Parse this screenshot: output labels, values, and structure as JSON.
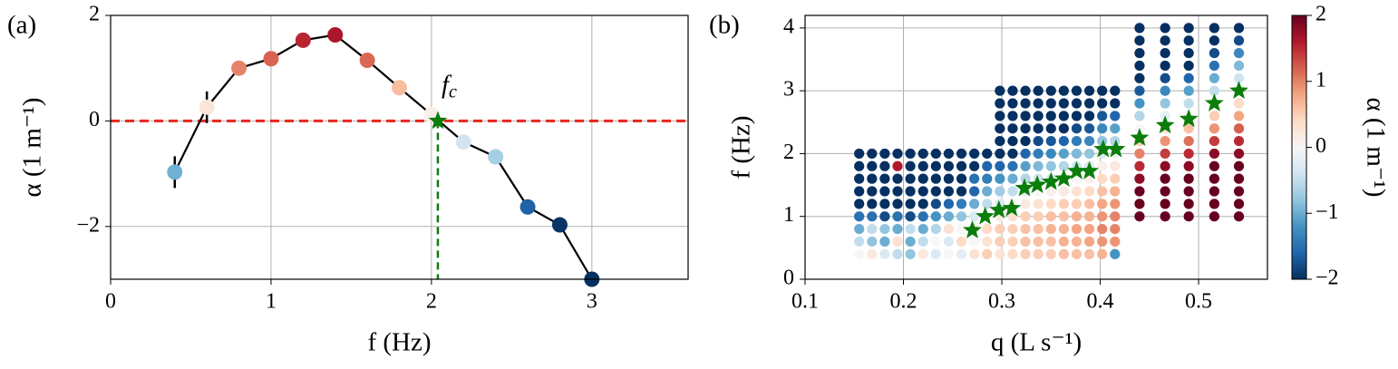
{
  "chart_data": [
    {
      "type": "line",
      "panel_label": "(a)",
      "xlabel": "f (Hz)",
      "ylabel": "α (1 m⁻¹)",
      "x": [
        0.4,
        0.6,
        0.8,
        1.0,
        1.2,
        1.4,
        1.6,
        1.8,
        2.0,
        2.2,
        2.4,
        2.6,
        2.8,
        3.0
      ],
      "values": [
        -0.97,
        0.26,
        1.0,
        1.18,
        1.53,
        1.63,
        1.15,
        0.63,
        0.12,
        -0.4,
        -0.68,
        -1.63,
        -1.97,
        -3.0
      ],
      "errors": [
        0.3,
        0.3,
        null,
        null,
        null,
        null,
        null,
        null,
        null,
        null,
        null,
        null,
        null,
        null
      ],
      "line_color": "#000000",
      "colormap": [
        "#053061",
        "#2166ac",
        "#4393c3",
        "#92c5de",
        "#d1e5f0",
        "#f7f7f7",
        "#fddbc7",
        "#f4a582",
        "#d6604d",
        "#b2182b",
        "#67001f"
      ],
      "clim": [
        -2,
        2
      ],
      "xlim": [
        0,
        3.6
      ],
      "ylim": [
        -3,
        2
      ],
      "xticks": [
        0,
        1,
        2,
        3
      ],
      "yticks": [
        {
          "value": -2,
          "label": "−2"
        },
        0,
        2
      ],
      "grid": true,
      "reference_line": {
        "value": 0,
        "color": "#e8251f"
      },
      "critical_point": {
        "label_main": "f",
        "label_sub": "c",
        "x": 2.04,
        "y": 0,
        "color": "#0a7d0a"
      }
    },
    {
      "type": "scatter",
      "panel_label": "(b)",
      "xlabel": "q (L s⁻¹)",
      "ylabel": "f (Hz)",
      "colorbar_label": "α (1 m⁻¹)",
      "regions": [
        {
          "f": [
            0.4,
            0.6,
            0.8,
            1.0,
            1.2,
            1.4,
            1.6,
            1.8,
            2.0
          ],
          "columns": [
            {
              "q": 0.155,
              "alpha": [
                0,
                -0.5,
                -1,
                -1.5,
                -2,
                -2,
                -2,
                -2,
                -2
              ]
            },
            {
              "q": 0.168,
              "alpha": [
                0.2,
                -0.8,
                -0.5,
                -1.5,
                -2,
                -2,
                -2,
                -2,
                -2
              ]
            },
            {
              "q": 0.181,
              "alpha": [
                -0.3,
                -1,
                -0.8,
                -1.8,
                -2,
                -2,
                -2,
                -2,
                -2
              ]
            },
            {
              "q": 0.194,
              "alpha": [
                -0.5,
                0.3,
                -1,
                -1.5,
                -2,
                -2,
                -2,
                1.6,
                -2
              ]
            },
            {
              "q": 0.207,
              "alpha": [
                -0.8,
                -1,
                -0.5,
                -1.8,
                -2,
                -2,
                -2,
                -2,
                -2
              ]
            },
            {
              "q": 0.22,
              "alpha": [
                0.2,
                -0.5,
                -1,
                -1.5,
                -2,
                -2,
                -2,
                -2,
                -2
              ]
            },
            {
              "q": 0.233,
              "alpha": [
                -0.3,
                0,
                -0.6,
                -1.2,
                -1.8,
                -2,
                -2,
                -2,
                -2
              ]
            },
            {
              "q": 0.246,
              "alpha": [
                0,
                -0.3,
                0.3,
                -1,
                -1.6,
                -2,
                -2,
                -2,
                -2
              ]
            },
            {
              "q": 0.259,
              "alpha": [
                -0.2,
                0.4,
                0,
                -0.8,
                -1.4,
                -2,
                -2,
                -2,
                -2
              ]
            },
            {
              "q": 0.272,
              "alpha": [
                0.3,
                0,
                0.2,
                -0.3,
                -1,
                -1.6,
                -1.5,
                -2,
                -2
              ]
            },
            {
              "q": 0.285,
              "alpha": [
                0.5,
                0.3,
                0.4,
                0,
                -0.5,
                -1,
                -1.4,
                -1.6,
                -2
              ]
            }
          ]
        },
        {
          "f": [
            0.4,
            0.6,
            0.8,
            1.0,
            1.2,
            1.4,
            1.6,
            1.8,
            2.0,
            2.2,
            2.4,
            2.6,
            2.8,
            3.0
          ],
          "columns": [
            {
              "q": 0.298,
              "alpha": [
                0.3,
                0.5,
                0.5,
                0.2,
                -0.3,
                -0.7,
                -1.2,
                -1.6,
                -2,
                -2,
                -2,
                -2,
                -2,
                -2
              ]
            },
            {
              "q": 0.311,
              "alpha": [
                0.4,
                0.5,
                0.5,
                0.3,
                0,
                -0.5,
                -1,
                -1.5,
                -2,
                -2,
                -2,
                -2,
                -2,
                -2
              ]
            },
            {
              "q": 0.324,
              "alpha": [
                0.5,
                0.6,
                0.6,
                0.5,
                0.2,
                -0.2,
                -0.6,
                -1.1,
                -1.6,
                -2,
                -2,
                -2,
                -2,
                -2
              ]
            },
            {
              "q": 0.337,
              "alpha": [
                0.5,
                0.6,
                0.6,
                0.5,
                0.3,
                0,
                -0.4,
                -0.9,
                -1.4,
                -1.8,
                -2,
                -2,
                -2,
                -2
              ]
            },
            {
              "q": 0.35,
              "alpha": [
                0.5,
                0.6,
                0.7,
                0.6,
                0.4,
                0.1,
                -0.3,
                -0.8,
                -1.3,
                -1.7,
                -2,
                -2,
                -2,
                -2
              ]
            },
            {
              "q": 0.363,
              "alpha": [
                0.6,
                0.7,
                0.7,
                0.6,
                0.5,
                0.2,
                -0.2,
                -0.6,
                -1.1,
                -1.6,
                -2,
                -2,
                -2,
                -2
              ]
            },
            {
              "q": 0.376,
              "alpha": [
                0.6,
                0.7,
                0.8,
                0.7,
                0.5,
                0.3,
                0,
                -0.4,
                -0.9,
                -1.4,
                -1.8,
                -2,
                -2,
                -2
              ]
            },
            {
              "q": 0.389,
              "alpha": [
                0.6,
                0.8,
                0.8,
                0.7,
                0.6,
                0.4,
                0.1,
                -0.3,
                -0.8,
                -1.3,
                -1.7,
                -2,
                -2,
                -2
              ]
            },
            {
              "q": 0.402,
              "alpha": [
                0.7,
                0.9,
                1,
                0.9,
                0.8,
                0.6,
                0.4,
                0.1,
                -0.3,
                -0.8,
                -1.3,
                -1.7,
                -2,
                -2
              ]
            },
            {
              "q": 0.415,
              "alpha": [
                -1.2,
                0.9,
                1,
                1,
                0.9,
                0.7,
                0.5,
                0.2,
                -0.1,
                -0.6,
                -1.1,
                -1.6,
                -2,
                -2
              ]
            }
          ]
        },
        {
          "f": [
            1.0,
            1.2,
            1.4,
            1.6,
            1.8,
            2.0,
            2.2,
            2.4,
            2.6,
            2.8,
            3.0,
            3.2,
            3.4,
            3.6,
            3.8,
            4.0
          ],
          "columns": [
            {
              "q": 0.44,
              "alpha": [
                2,
                2,
                2,
                1.8,
                1.5,
                1,
                0.5,
                0,
                -0.6,
                -1.2,
                -1.7,
                -2,
                -2,
                -2,
                -2,
                -2
              ]
            },
            {
              "q": 0.466,
              "alpha": [
                2,
                2,
                2,
                2,
                1.8,
                1.4,
                0.9,
                0.3,
                -0.2,
                -0.8,
                -1.3,
                -1.8,
                -2,
                -2,
                -2,
                -2
              ]
            },
            {
              "q": 0.49,
              "alpha": [
                2,
                2,
                2,
                2,
                1.8,
                1.5,
                1.1,
                0.6,
                0,
                -0.5,
                -1.1,
                -1.6,
                -2,
                -2,
                -2,
                -2
              ]
            },
            {
              "q": 0.516,
              "alpha": [
                2,
                2,
                2,
                2,
                2,
                1.8,
                1.4,
                0.9,
                0.5,
                0,
                -0.5,
                -1,
                -1.5,
                -1.8,
                -2,
                -2
              ]
            },
            {
              "q": 0.541,
              "alpha": [
                2,
                2,
                2,
                2,
                2,
                1.8,
                1.5,
                1.2,
                0.8,
                0.4,
                0,
                -0.4,
                -0.9,
                -1.3,
                -1.8,
                -2
              ]
            }
          ]
        }
      ],
      "critical": {
        "color": "#0a7d0a",
        "q": [
          0.27,
          0.283,
          0.297,
          0.31,
          0.323,
          0.336,
          0.35,
          0.363,
          0.376,
          0.389,
          0.403,
          0.416,
          0.44,
          0.466,
          0.49,
          0.516,
          0.541
        ],
        "f": [
          0.78,
          1.0,
          1.1,
          1.13,
          1.45,
          1.5,
          1.55,
          1.6,
          1.72,
          1.72,
          2.07,
          2.07,
          2.25,
          2.45,
          2.55,
          2.8,
          3.0
        ]
      },
      "xlim": [
        0.1,
        0.57
      ],
      "ylim": [
        0,
        4.2
      ],
      "xticks": [
        0.1,
        0.2,
        0.3,
        0.4,
        0.5
      ],
      "yticks": [
        0,
        1,
        2,
        3,
        4
      ],
      "grid": true,
      "colormap": [
        "#053061",
        "#2166ac",
        "#4393c3",
        "#92c5de",
        "#d1e5f0",
        "#f7f7f7",
        "#fddbc7",
        "#f4a582",
        "#d6604d",
        "#b2182b",
        "#67001f"
      ],
      "clim": [
        -2,
        2
      ],
      "cticks": [
        {
          "value": -2,
          "label": "−2"
        },
        {
          "value": -1,
          "label": "−1"
        },
        0,
        1,
        2
      ]
    }
  ]
}
